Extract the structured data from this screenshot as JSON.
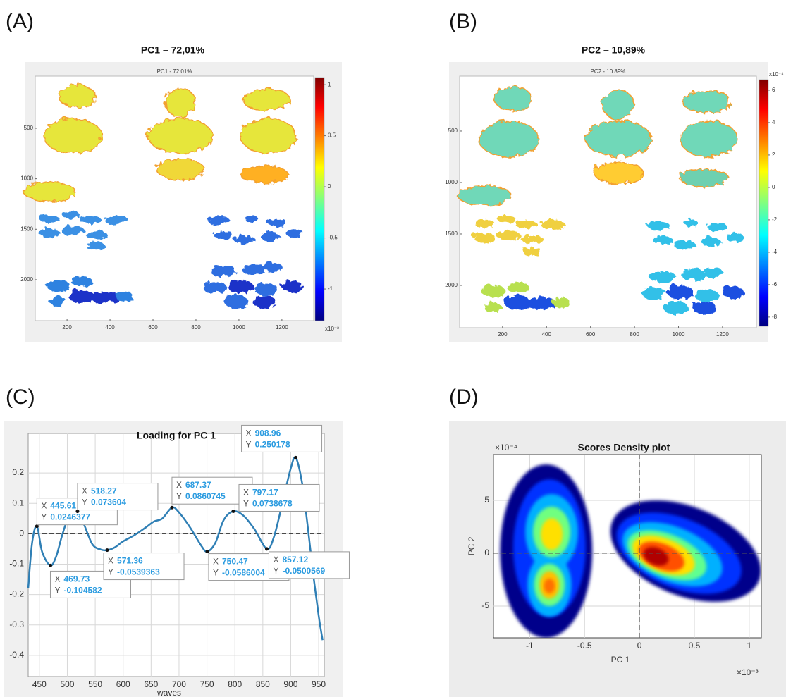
{
  "chart_data": [
    {
      "type": "heatmap",
      "panel": "(A)",
      "title": "PC1 – 72,01%",
      "subtitle": "PC1 - 72.01%",
      "colormap": "jet",
      "yreverse": true,
      "xlim": [
        52,
        1348
      ],
      "xticks": [
        200,
        400,
        600,
        800,
        1000,
        1200
      ],
      "ylim": [
        -16,
        2405
      ],
      "yticks": [
        500,
        1000,
        1500,
        2000
      ],
      "colorbar": {
        "lim": [
          -1.31,
          1.07
        ],
        "ticks": [
          1,
          0.5,
          0,
          -0.5,
          -1
        ],
        "multiplier": "x10⁻³"
      }
    },
    {
      "type": "heatmap",
      "panel": "(B)",
      "title": "PC2 – 10,89%",
      "subtitle": "PC2 - 10.89%",
      "colormap": "jet",
      "yreverse": true,
      "xlim": [
        5,
        1354
      ],
      "xticks": [
        200,
        400,
        600,
        800,
        1000,
        1200
      ],
      "ylim": [
        -34,
        2411
      ],
      "yticks": [
        500,
        1000,
        1500,
        2000
      ],
      "colorbar": {
        "lim": [
          -8.57,
          6.65
        ],
        "ticks": [
          6,
          4,
          2,
          0,
          -2,
          -4,
          -6,
          -8
        ],
        "multiplier": "x10⁻⁴"
      }
    },
    {
      "type": "line",
      "panel": "(C)",
      "title": "Loading for PC 1",
      "xlabel": "waves",
      "color": "#2f7fb5",
      "grid": true,
      "hline": 0,
      "xlim": [
        430,
        960
      ],
      "xticks": [
        450,
        500,
        550,
        600,
        650,
        700,
        750,
        800,
        850,
        900,
        950
      ],
      "ylim": [
        -0.47,
        0.33
      ],
      "yticks": [
        0.2,
        0.1,
        0,
        -0.1,
        -0.2,
        -0.3,
        -0.4
      ],
      "x": [
        430,
        437,
        445.61,
        455,
        469.73,
        480,
        490,
        500,
        510,
        518.27,
        530,
        545,
        560,
        571.36,
        585,
        600,
        620,
        640,
        655,
        670,
        687.37,
        700,
        720,
        740,
        750.47,
        765,
        780,
        797.17,
        815,
        835,
        857.12,
        870,
        885,
        900,
        908.96,
        920,
        930,
        940,
        950,
        957
      ],
      "values": [
        -0.18,
        -0.03,
        0.0246377,
        -0.06,
        -0.104582,
        -0.075,
        -0.01,
        0.045,
        0.07,
        0.073604,
        0.03,
        -0.035,
        -0.052,
        -0.0539363,
        -0.045,
        -0.025,
        -0.005,
        0.02,
        0.04,
        0.05,
        0.0860745,
        0.07,
        0.02,
        -0.04,
        -0.0586004,
        -0.03,
        0.045,
        0.0738678,
        0.06,
        0.015,
        -0.0500569,
        -0.01,
        0.1,
        0.215,
        0.250178,
        0.17,
        0.03,
        -0.13,
        -0.27,
        -0.35
      ],
      "datatip_labels": {
        "x": "X",
        "y": "Y"
      },
      "annotations": [
        {
          "x": 445.61,
          "y": 0.0246377
        },
        {
          "x": 469.73,
          "y": -0.104582
        },
        {
          "x": 518.27,
          "y": 0.073604
        },
        {
          "x": 571.36,
          "y": -0.0539363
        },
        {
          "x": 687.37,
          "y": 0.0860745
        },
        {
          "x": 750.47,
          "y": -0.0586004
        },
        {
          "x": 797.17,
          "y": 0.0738678
        },
        {
          "x": 857.12,
          "y": -0.0500569
        },
        {
          "x": 908.96,
          "y": 0.250178
        }
      ]
    },
    {
      "type": "density",
      "panel": "(D)",
      "title": "Scores Density plot",
      "xlabel": "PC 1",
      "ylabel": "PC 2",
      "grid": true,
      "hline": 0,
      "vline": 0,
      "xlim": [
        -1.33,
        1.11
      ],
      "xticks": [
        -1,
        -0.5,
        0,
        0.5,
        1
      ],
      "x_multiplier": "×10⁻³",
      "ylim": [
        -8,
        9.33
      ],
      "yticks": [
        -5,
        0,
        5
      ],
      "y_multiplier": "×10⁻⁴"
    }
  ]
}
